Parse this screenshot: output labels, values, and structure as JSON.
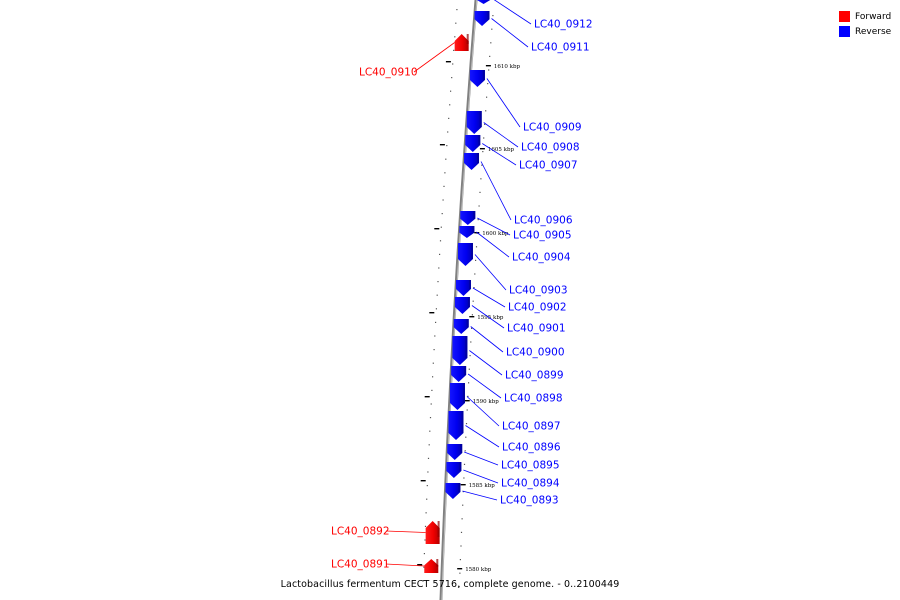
{
  "legend": {
    "forward_label": "Forward",
    "reverse_label": "Reverse",
    "forward_color": "#ff0000",
    "reverse_color": "#0000ff"
  },
  "caption": "Lactobacillus fermentum CECT 5716, complete genome. - 0..2100449",
  "scale_labels": [
    "1610 kbp",
    "1605 kbp",
    "1600 kbp",
    "1595 kbp",
    "1590 kbp",
    "1585 kbp",
    "1580 kbp"
  ],
  "genes": [
    {
      "name": "LC40_0912",
      "strand": "reverse"
    },
    {
      "name": "LC40_0911",
      "strand": "reverse"
    },
    {
      "name": "LC40_0910",
      "strand": "forward"
    },
    {
      "name": "LC40_0909",
      "strand": "reverse"
    },
    {
      "name": "LC40_0908",
      "strand": "reverse"
    },
    {
      "name": "LC40_0907",
      "strand": "reverse"
    },
    {
      "name": "LC40_0906",
      "strand": "reverse"
    },
    {
      "name": "LC40_0905",
      "strand": "reverse"
    },
    {
      "name": "LC40_0904",
      "strand": "reverse"
    },
    {
      "name": "LC40_0903",
      "strand": "reverse"
    },
    {
      "name": "LC40_0902",
      "strand": "reverse"
    },
    {
      "name": "LC40_0901",
      "strand": "reverse"
    },
    {
      "name": "LC40_0900",
      "strand": "reverse"
    },
    {
      "name": "LC40_0899",
      "strand": "reverse"
    },
    {
      "name": "LC40_0898",
      "strand": "reverse"
    },
    {
      "name": "LC40_0897",
      "strand": "reverse"
    },
    {
      "name": "LC40_0896",
      "strand": "reverse"
    },
    {
      "name": "LC40_0895",
      "strand": "reverse"
    },
    {
      "name": "LC40_0894",
      "strand": "reverse"
    },
    {
      "name": "LC40_0893",
      "strand": "reverse"
    },
    {
      "name": "LC40_0892",
      "strand": "forward"
    },
    {
      "name": "LC40_0891",
      "strand": "forward"
    }
  ]
}
